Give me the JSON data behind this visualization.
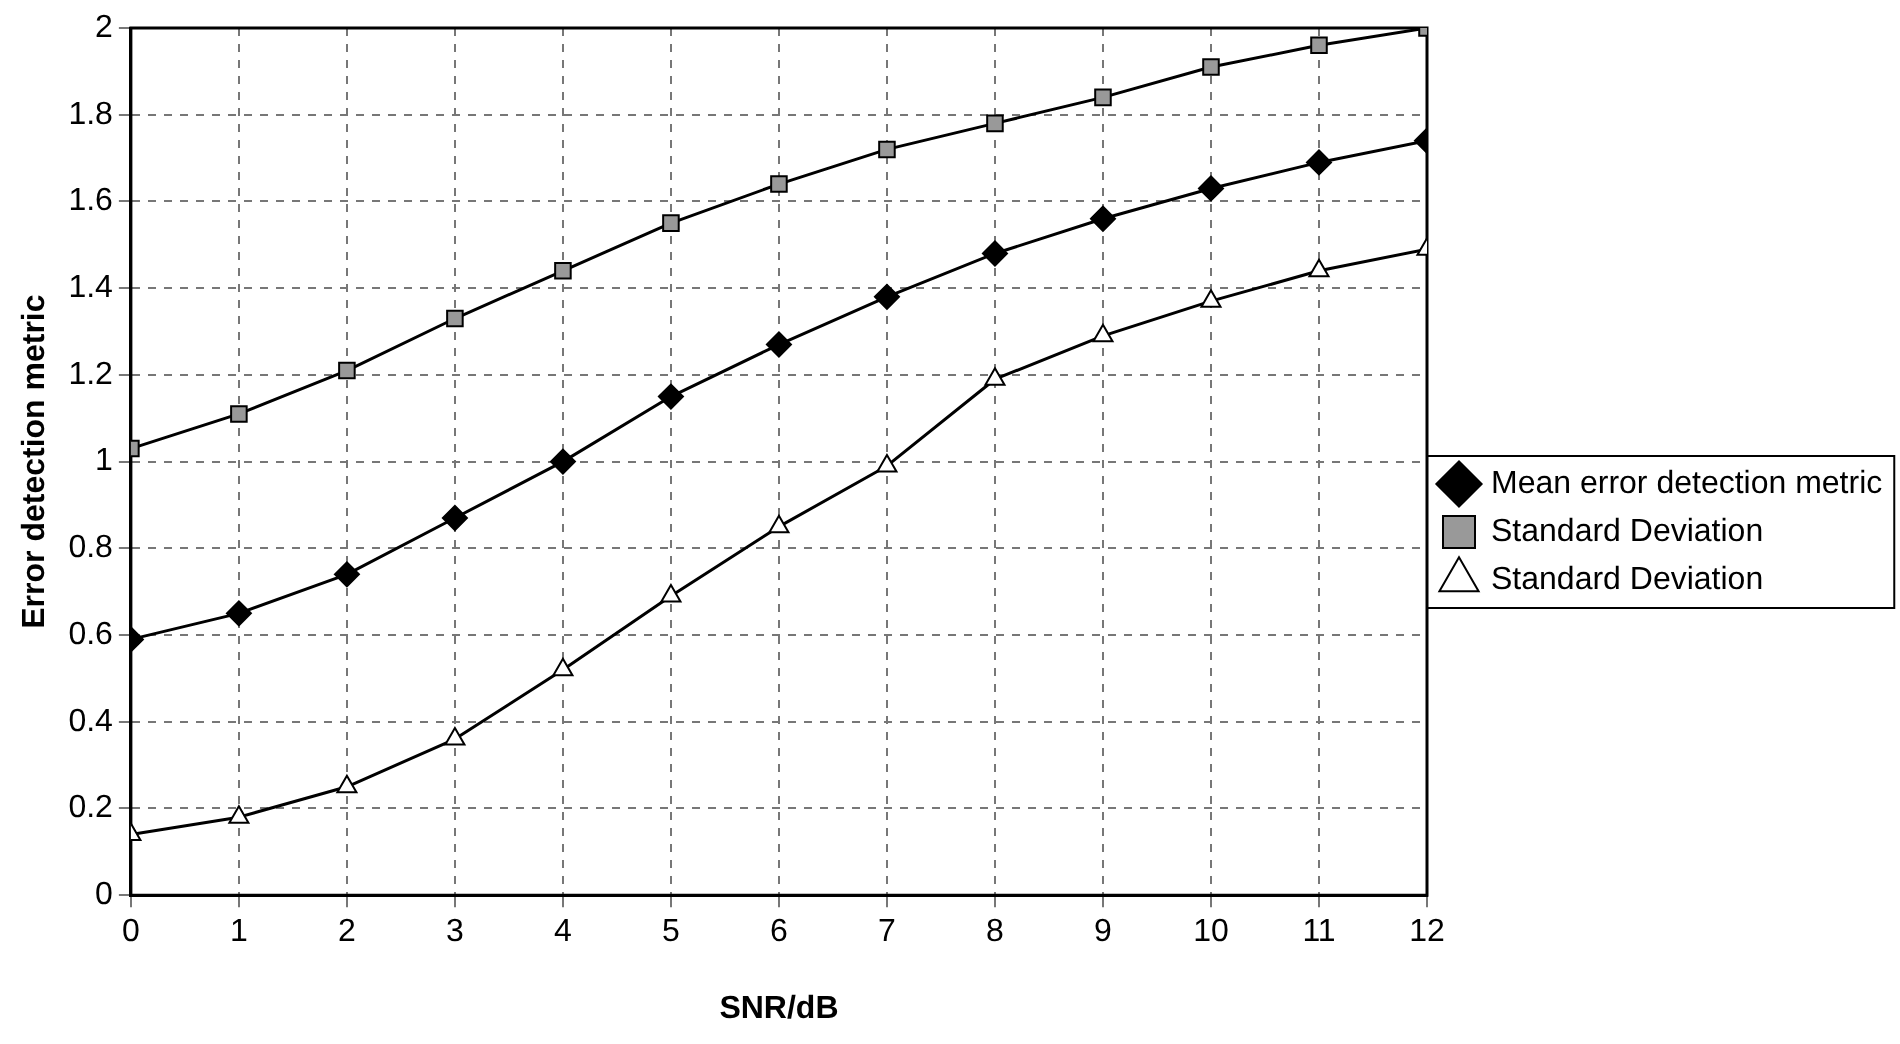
{
  "chart_data": {
    "type": "line",
    "xlabel": "SNR/dB",
    "ylabel": "Error detection metric",
    "x": [
      0,
      1,
      2,
      3,
      4,
      5,
      6,
      7,
      8,
      9,
      10,
      11,
      12
    ],
    "series": [
      {
        "name": "Mean error detection metric",
        "color": "#000000",
        "marker": "diamond",
        "values": [
          0.59,
          0.65,
          0.74,
          0.87,
          1.0,
          1.15,
          1.27,
          1.38,
          1.48,
          1.56,
          1.63,
          1.69,
          1.74
        ]
      },
      {
        "name": "Standard Deviation",
        "color": "#999999",
        "marker": "square",
        "values": [
          1.03,
          1.11,
          1.21,
          1.33,
          1.44,
          1.55,
          1.64,
          1.72,
          1.78,
          1.84,
          1.91,
          1.96,
          2.0
        ]
      },
      {
        "name": "Standard Deviation",
        "color": "#ffffff",
        "marker": "triangle",
        "values": [
          0.14,
          0.18,
          0.25,
          0.36,
          0.52,
          0.69,
          0.85,
          0.99,
          1.19,
          1.29,
          1.37,
          1.44,
          1.49
        ]
      }
    ],
    "xlim": [
      0,
      12
    ],
    "xticks": [
      0,
      1,
      2,
      3,
      4,
      5,
      6,
      7,
      8,
      9,
      10,
      11,
      12
    ],
    "ylim": [
      0,
      2
    ],
    "yticks": [
      0,
      0.2,
      0.4,
      0.6,
      0.8,
      1,
      1.2,
      1.4,
      1.6,
      1.8,
      2
    ],
    "grid": true,
    "legend": "right"
  }
}
